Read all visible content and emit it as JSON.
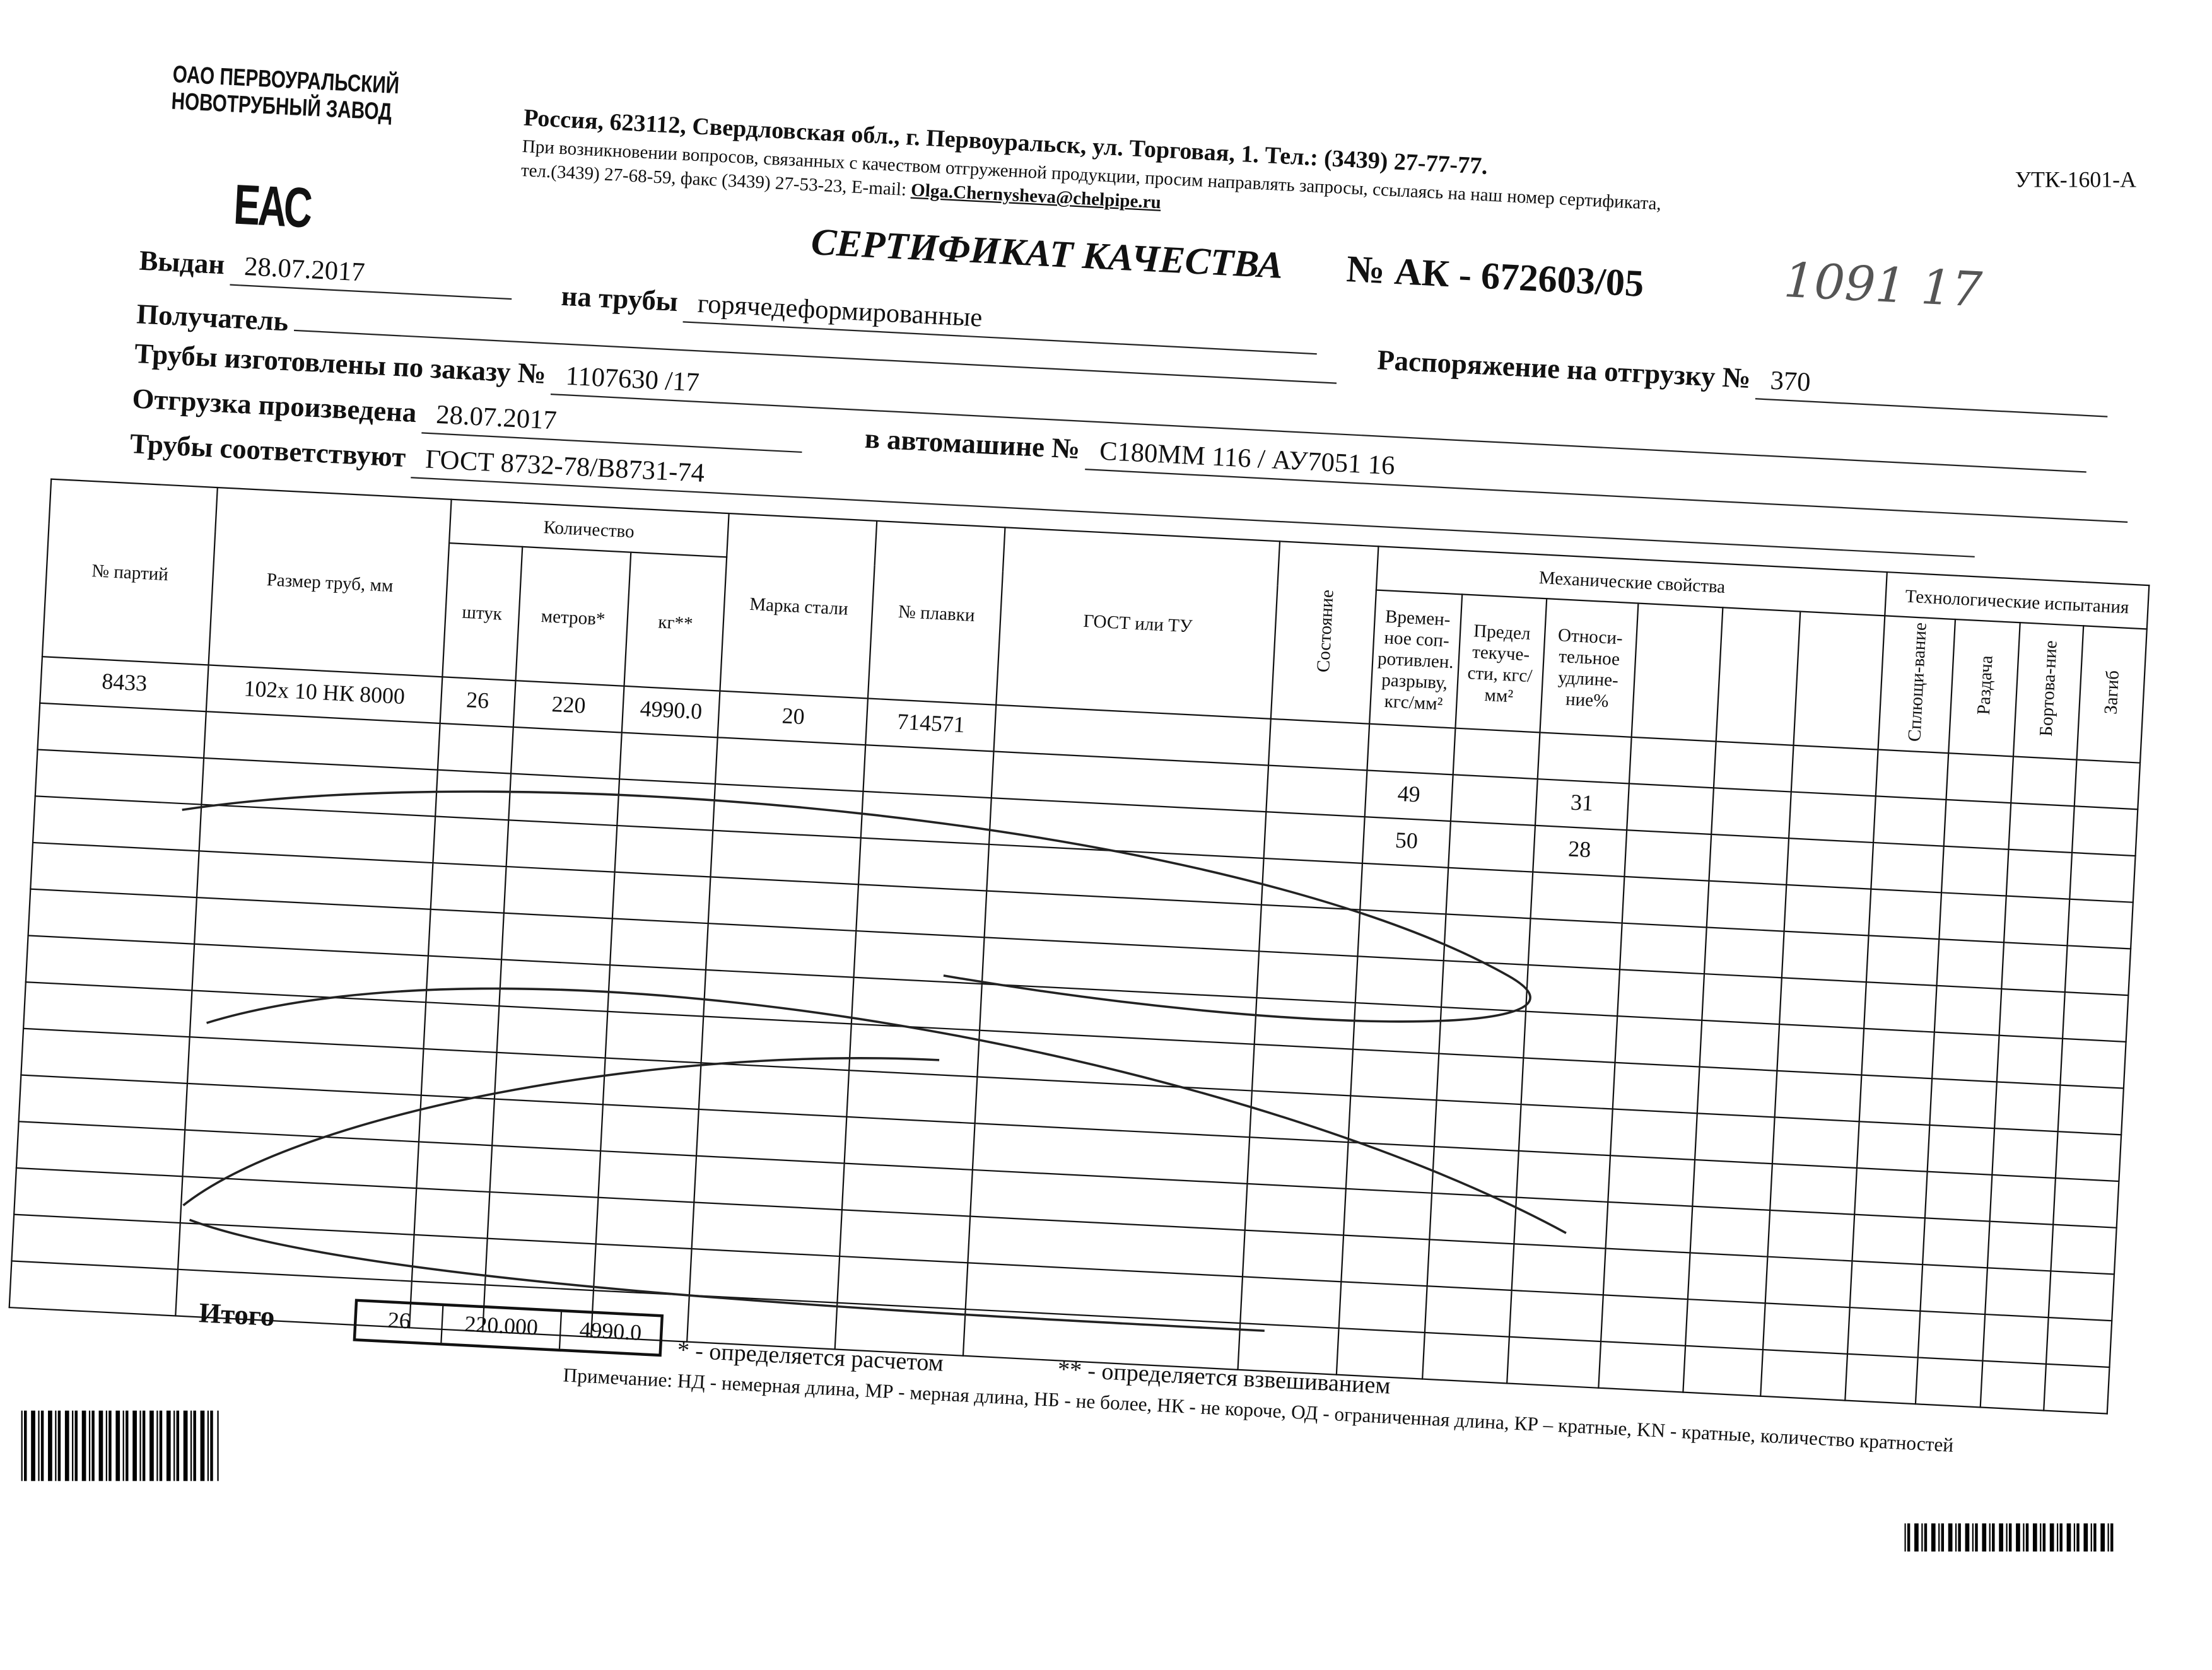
{
  "header": {
    "logo_line1": "ОАО ПЕРВОУРАЛЬСКИЙ",
    "logo_line2": "НОВОТРУБНЫЙ ЗАВОД",
    "eac_mark": "ЕАС",
    "address": "Россия, 623112, Свердловская обл., г. Первоуральск, ул. Торговая, 1. Тел.: (3439) 27-77-77.",
    "notice": "При возникновении вопросов, связанных с качеством отгруженной продукции, просим направлять запросы, ссылаясь на наш номер сертификата,",
    "contacts": "тел.(3439) 27-68-59, факс (3439) 27-53-23,  E-mail:",
    "email": "Olga.Chernysheva@chelpipe.ru",
    "form_code": "УТК-1601-А"
  },
  "certificate": {
    "title": "СЕРТИФИКАТ КАЧЕСТВА",
    "number": "№  АК -  672603/05",
    "handwritten": "1091 17"
  },
  "fields": {
    "issued_label": "Выдан",
    "issued_value": "28.07.2017",
    "pipes_label": "на трубы",
    "pipes_value": "горячедеформированные",
    "recipient_label": "Получатель",
    "recipient_value": "",
    "order_label": "Распоряжение на отгрузку №",
    "order_value": "370",
    "made_label": "Трубы изготовлены по заказу №",
    "made_value": "1107630   /17",
    "shipped_label": "Отгрузка произведена",
    "shipped_value": "28.07.2017",
    "vehicle_label": "в автомашине №",
    "vehicle_value": "С180ММ 116 / АУ7051 16",
    "conform_label": "Трубы соответствуют",
    "conform_value": "ГОСТ 8732-78/В8731-74"
  },
  "table": {
    "headers": {
      "batch": "№ партий",
      "size": "Размер труб, мм",
      "quantity": "Количество",
      "pieces": "штук",
      "meters": "метров*",
      "kg": "кг**",
      "steel": "Марка стали",
      "heat": "№ плавки",
      "gost": "ГОСТ или ТУ",
      "state": "Состояние",
      "mech": "Механические свойства",
      "tensile": "Времен-ное соп-ротивлен. разрыву, кгс/мм²",
      "yield": "Предел текуче-сти, кгс/мм²",
      "elong": "Относи-тельное удлине-ние%",
      "tech": "Технологические испытания",
      "flatten": "Сплющи-вание",
      "expand": "Раздача",
      "flange": "Бортова-ние",
      "bend": "Загиб"
    },
    "row": {
      "batch": "8433",
      "size": "102х 10 НК 8000",
      "pieces": "26",
      "meters": "220",
      "kg": "4990.0",
      "steel": "20",
      "heat": "714571"
    },
    "mech_rows": [
      {
        "tensile": "49",
        "elong": "31"
      },
      {
        "tensile": "50",
        "elong": "28"
      }
    ],
    "totals": {
      "label": "Итого",
      "pieces": "26",
      "meters": "220.000",
      "kg": "4990.0"
    }
  },
  "footer": {
    "calc": "* - определяется расчетом",
    "weigh": "** - определяется взвешиванием",
    "note": "Примечание: НД - немерная длина, МР - мерная длина, НБ - не более, НК - не короче, ОД - ограниченная длина, КР – кратные, KN - кратные, количество кратностей"
  }
}
